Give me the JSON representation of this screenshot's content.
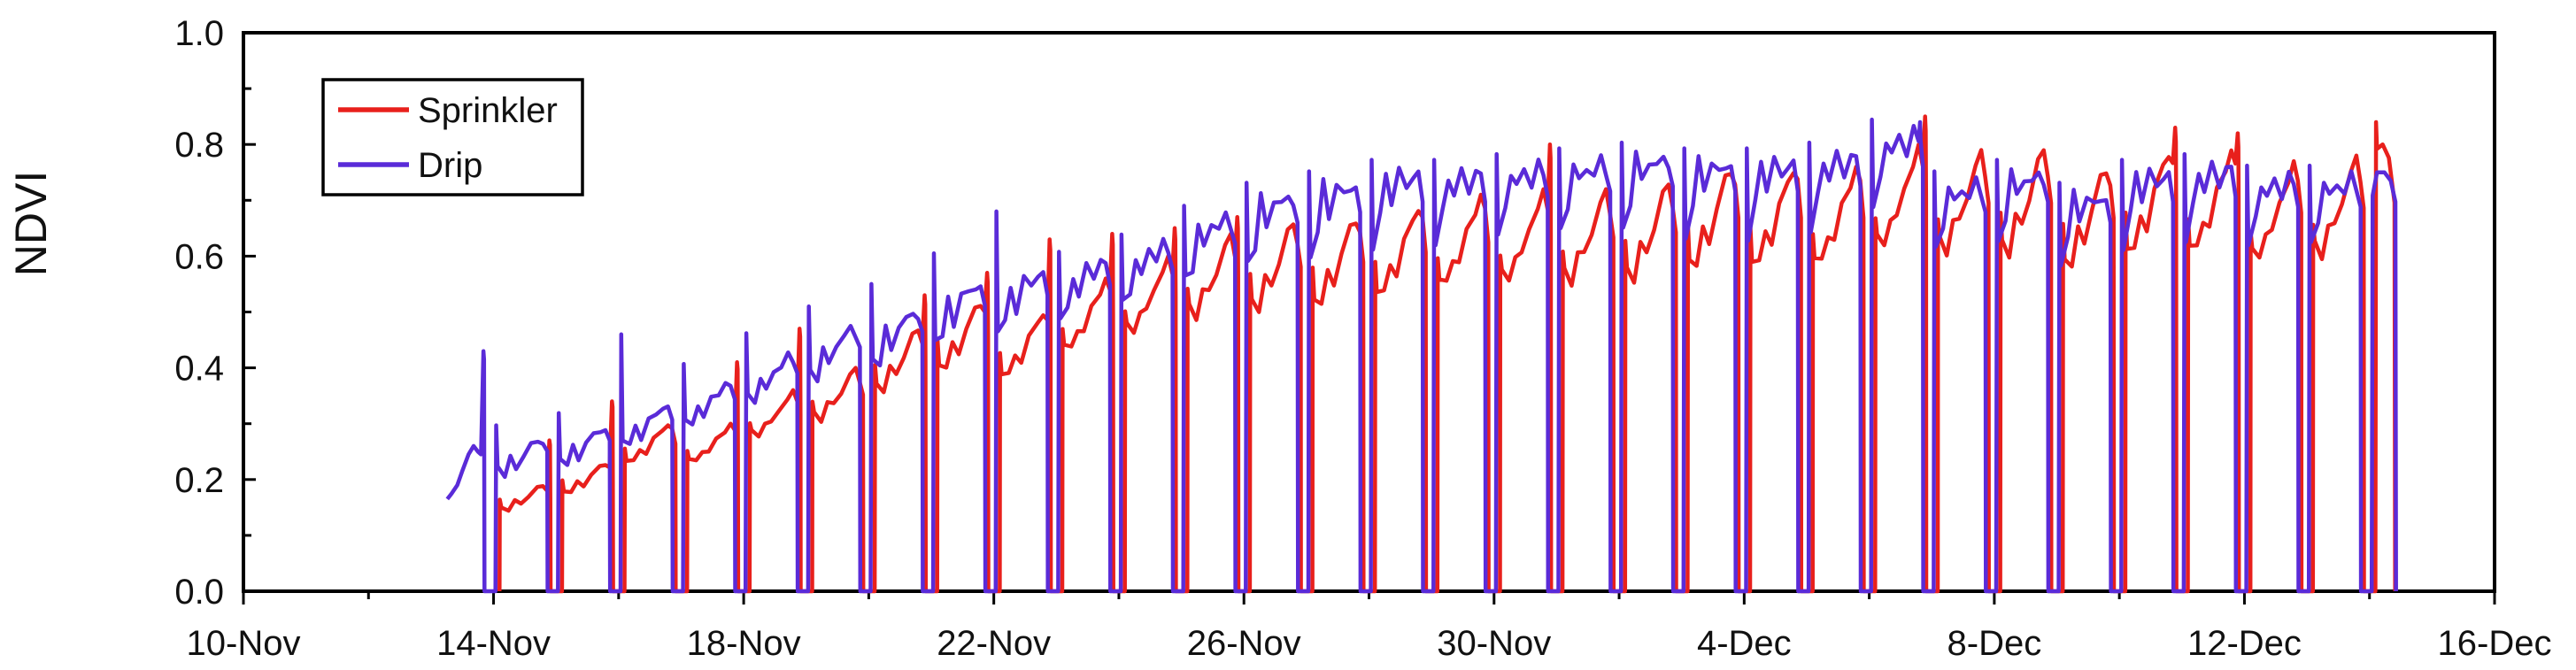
{
  "chart_data": {
    "type": "line",
    "title": "",
    "ylabel": "NDVI",
    "xlabel": "",
    "ylim": [
      0.0,
      1.0
    ],
    "y_tick_labels": [
      "0.0",
      "0.2",
      "0.4",
      "0.6",
      "0.8",
      "1.0"
    ],
    "y_tick_values": [
      0.0,
      0.2,
      0.4,
      0.6,
      0.8,
      1.0
    ],
    "y_minor_step": 0.1,
    "x_tick_labels": [
      "10-Nov",
      "14-Nov",
      "18-Nov",
      "22-Nov",
      "26-Nov",
      "30-Nov",
      "4-Dec",
      "8-Dec",
      "12-Dec",
      "16-Dec"
    ],
    "x_major_every_days": 4,
    "x_minor_every_days": 2,
    "x_range_days": 36,
    "grid": false,
    "legend": {
      "position": "top-left",
      "entries": [
        {
          "label": "Sprinkler",
          "color": "#e8201c"
        },
        {
          "label": "Drip",
          "color": "#5a2bd8"
        }
      ]
    },
    "description": "Diurnal NDVI traces: each day the signal rises from 0, arcs through daylight hours, and drops back to 0 at night. Values below are the daily arc peak and transient thin-spike maxima read from the plot.",
    "dates": [
      "13-Nov",
      "14-Nov",
      "15-Nov",
      "16-Nov",
      "17-Nov",
      "18-Nov",
      "19-Nov",
      "20-Nov",
      "21-Nov",
      "22-Nov",
      "23-Nov",
      "24-Nov",
      "25-Nov",
      "26-Nov",
      "27-Nov",
      "28-Nov",
      "29-Nov",
      "30-Nov",
      "1-Dec",
      "2-Dec",
      "3-Dec",
      "4-Dec",
      "5-Dec",
      "6-Dec",
      "7-Dec",
      "8-Dec",
      "9-Dec",
      "10-Dec",
      "11-Dec",
      "12-Dec",
      "13-Dec",
      "14-Dec"
    ],
    "first_day_axis_index": 3,
    "series": [
      {
        "name": "Sprinkler",
        "color": "#e8201c",
        "daily_peak": [
          null,
          0.19,
          0.23,
          0.3,
          0.3,
          0.36,
          0.4,
          0.47,
          0.52,
          0.5,
          0.56,
          0.6,
          0.64,
          0.66,
          0.67,
          0.69,
          0.71,
          0.72,
          0.72,
          0.73,
          0.76,
          0.76,
          0.76,
          0.8,
          0.79,
          0.79,
          0.76,
          0.79,
          0.79,
          0.77,
          0.78,
          0.8
        ],
        "spike_peak": [
          null,
          0.27,
          0.34,
          null,
          0.41,
          0.47,
          null,
          0.53,
          0.57,
          0.63,
          0.64,
          0.65,
          0.67,
          null,
          null,
          null,
          null,
          0.8,
          null,
          null,
          null,
          null,
          null,
          0.85,
          null,
          null,
          null,
          0.83,
          0.82,
          null,
          null,
          0.84
        ]
      },
      {
        "name": "Drip",
        "color": "#5a2bd8",
        "daily_peak": [
          0.26,
          0.27,
          0.29,
          0.33,
          0.37,
          0.42,
          0.47,
          0.5,
          0.55,
          0.57,
          0.59,
          0.62,
          0.67,
          0.71,
          0.73,
          0.75,
          0.75,
          0.76,
          0.77,
          0.78,
          0.77,
          0.77,
          0.78,
          0.82,
          0.73,
          0.75,
          0.71,
          0.75,
          0.76,
          0.74,
          0.74,
          0.75
        ],
        "spike_peak": [
          0.43,
          null,
          null,
          0.46,
          null,
          null,
          0.51,
          null,
          null,
          0.68,
          null,
          null,
          null,
          null,
          null,
          null,
          null,
          null,
          null,
          null,
          null,
          null,
          null,
          0.84,
          null,
          null,
          null,
          null,
          null,
          null,
          null,
          null
        ]
      }
    ],
    "first_drip_day_trace": [
      [
        0.26,
        0.165
      ],
      [
        0.33,
        0.175
      ],
      [
        0.42,
        0.19
      ],
      [
        0.5,
        0.215
      ],
      [
        0.6,
        0.245
      ],
      [
        0.68,
        0.26
      ],
      [
        0.75,
        0.25
      ],
      [
        0.8,
        0.245
      ],
      [
        0.838,
        0.43
      ],
      [
        0.848,
        0.415
      ],
      [
        0.855,
        0.0
      ]
    ],
    "axis_color": "#000000",
    "text_color": "#111111"
  }
}
